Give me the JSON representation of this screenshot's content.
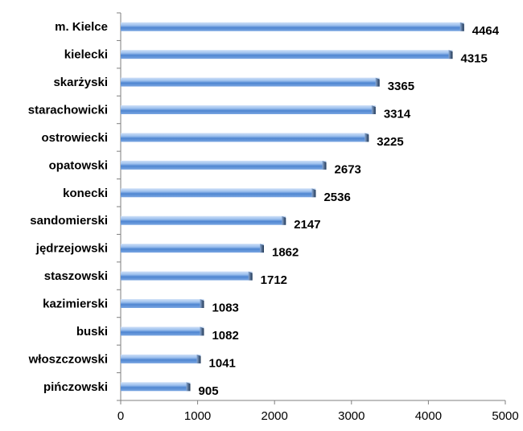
{
  "chart_data": {
    "type": "bar",
    "orientation": "horizontal",
    "categories": [
      "m. Kielce",
      "kielecki",
      "skarżyski",
      "starachowicki",
      "ostrowiecki",
      "opatowski",
      "konecki",
      "sandomierski",
      "jędrzejowski",
      "staszowski",
      "kazimierski",
      "buski",
      "włoszczowski",
      "pińczowski"
    ],
    "values": [
      4464,
      4315,
      3365,
      3314,
      3225,
      2673,
      2536,
      2147,
      1862,
      1712,
      1083,
      1082,
      1041,
      905
    ],
    "title": "",
    "xlabel": "",
    "ylabel": "",
    "xlim": [
      0,
      5000
    ],
    "xticks": [
      0,
      1000,
      2000,
      3000,
      4000,
      5000
    ],
    "grid": false,
    "legend": "none",
    "bar_color_light": "#dbe8f8",
    "bar_color_dark": "#4a7ec8",
    "bar_end_color": "#1f3d66"
  }
}
